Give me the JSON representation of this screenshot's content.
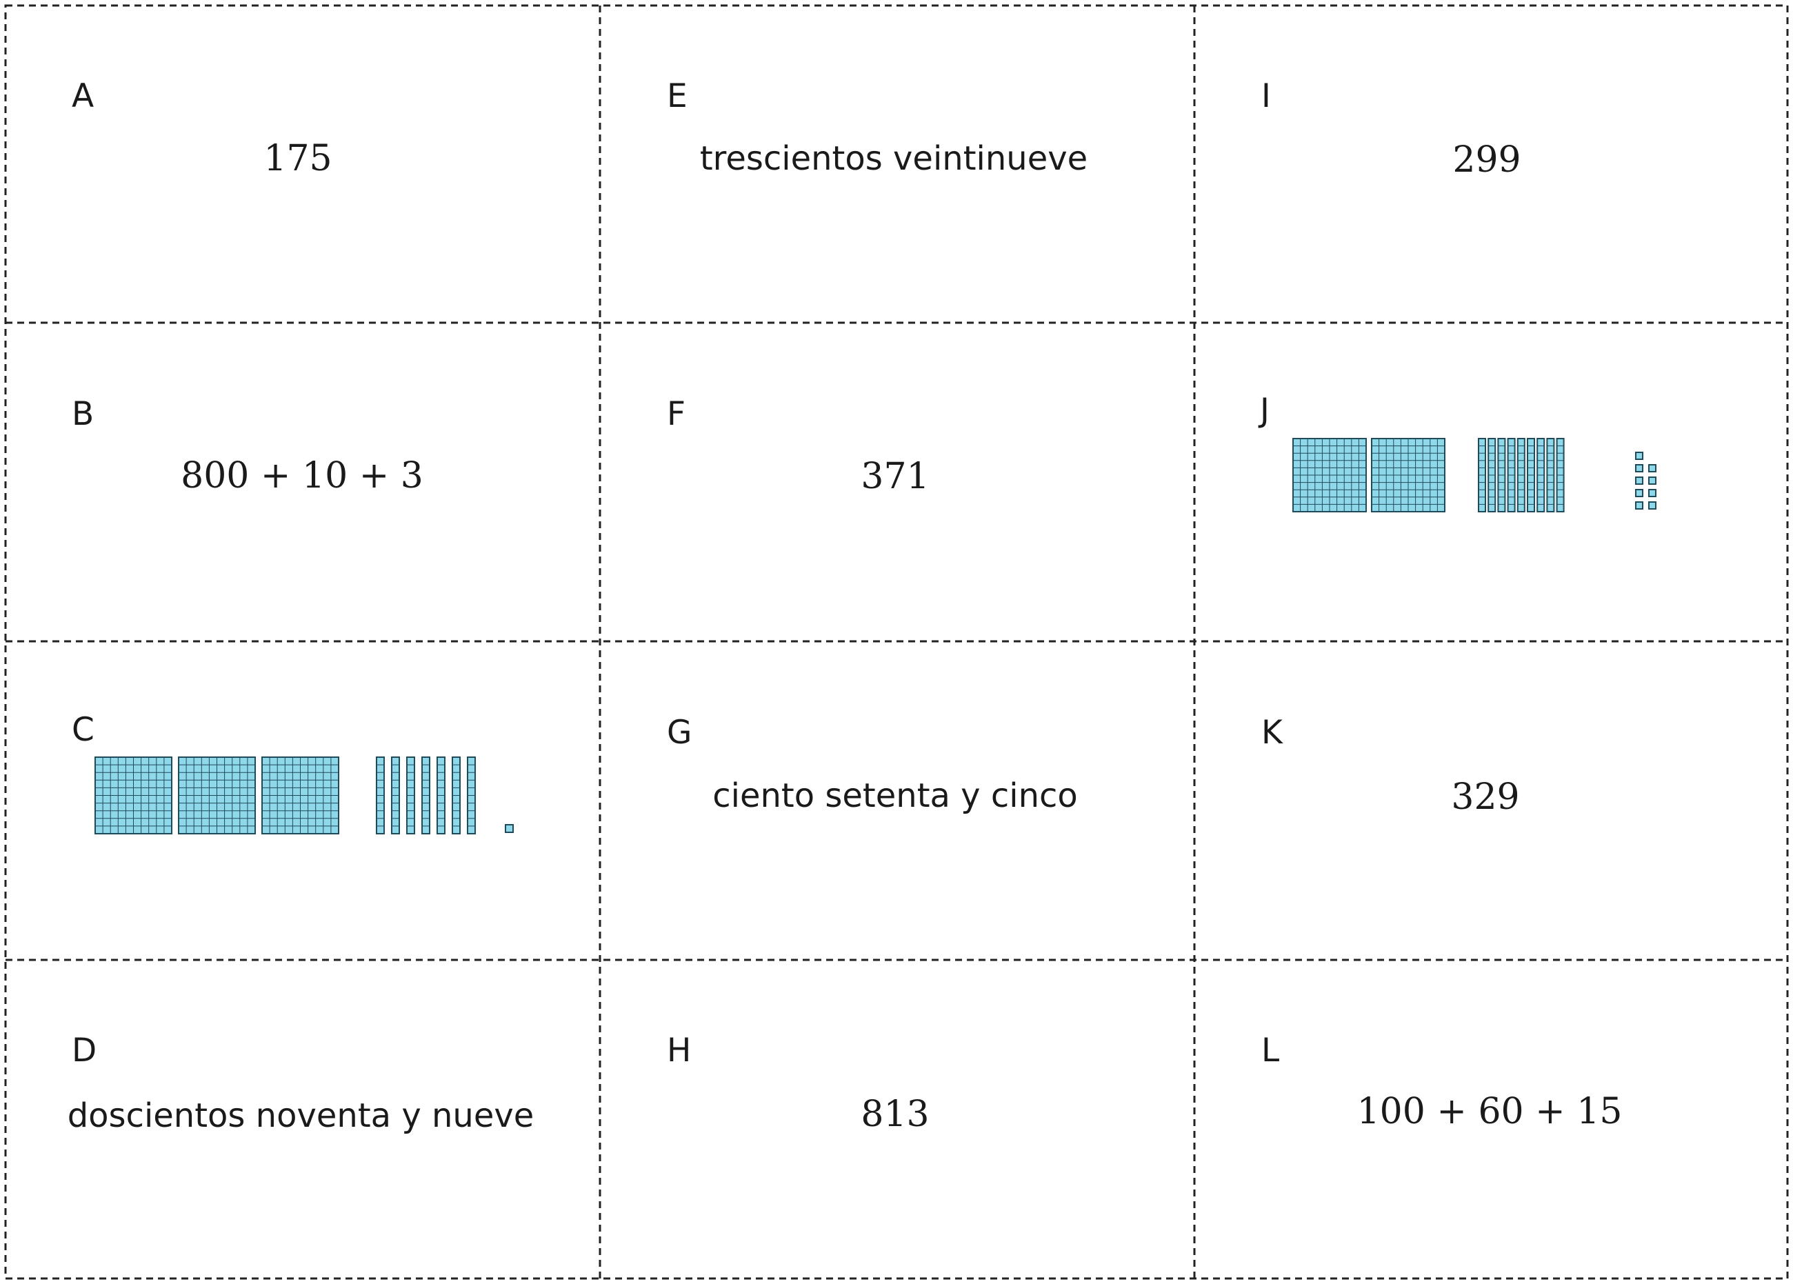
{
  "cards": {
    "A": {
      "letter": "A",
      "text": "175"
    },
    "B": {
      "letter": "B",
      "text": "800 + 10 + 3"
    },
    "C": {
      "letter": "C",
      "blocks": {
        "hundreds": 3,
        "tens": 7,
        "ones": 1
      }
    },
    "D": {
      "letter": "D",
      "text": "doscientos noventa y nueve"
    },
    "E": {
      "letter": "E",
      "text": "trescientos veintinueve"
    },
    "F": {
      "letter": "F",
      "text": "371"
    },
    "G": {
      "letter": "G",
      "text": "ciento setenta y cinco"
    },
    "H": {
      "letter": "H",
      "text": "813"
    },
    "I": {
      "letter": "I",
      "text": "299"
    },
    "J": {
      "letter": "J",
      "blocks": {
        "hundreds": 2,
        "tens": 9,
        "ones": 9
      }
    },
    "K": {
      "letter": "K",
      "text": "329"
    },
    "L": {
      "letter": "L",
      "text": "100 + 60 + 15"
    }
  },
  "colors": {
    "block_fill": "#8fd8ea",
    "block_stroke": "#1e4a5a",
    "cut_line": "#222222"
  }
}
